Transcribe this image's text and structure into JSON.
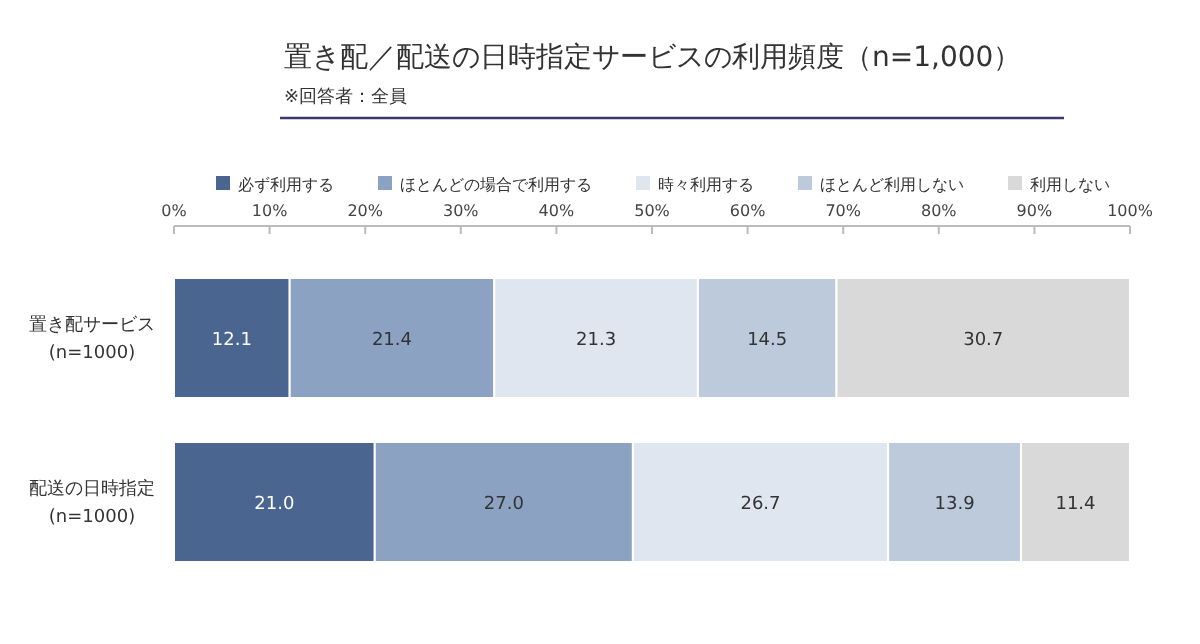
{
  "chart_data": {
    "type": "bar",
    "orientation": "horizontal",
    "stacked": true,
    "title": "置き配／配送の日時指定サービスの利用頻度（n=1,000）",
    "subtitle": "※回答者：全員",
    "categories": [
      "置き配サービス\n(n=1000)",
      "配送の日時指定\n(n=1000)"
    ],
    "series": [
      {
        "name": "必ず利用する",
        "color": "#4a6690",
        "values": [
          12.1,
          21.0
        ],
        "value_labels": [
          "12.1",
          "21.0"
        ]
      },
      {
        "name": "ほとんどの場合で利用する",
        "color": "#8ba2c2",
        "values": [
          21.4,
          27.0
        ],
        "value_labels": [
          "21.4",
          "27.0"
        ]
      },
      {
        "name": "時々利用する",
        "color": "#dfe6ef",
        "values": [
          21.3,
          26.7
        ],
        "value_labels": [
          "21.3",
          "26.7"
        ]
      },
      {
        "name": "ほとんど利用しない",
        "color": "#bccadb",
        "values": [
          14.5,
          13.9
        ],
        "value_labels": [
          "14.5",
          "13.9"
        ]
      },
      {
        "name": "利用しない",
        "color": "#d9d9d9",
        "values": [
          30.7,
          11.4
        ],
        "value_labels": [
          "30.7",
          "11.4"
        ]
      }
    ],
    "xlim": [
      0,
      100
    ],
    "xticks": [
      {
        "value": 0,
        "label": "0%"
      },
      {
        "value": 10,
        "label": "10%"
      },
      {
        "value": 20,
        "label": "20%"
      },
      {
        "value": 30,
        "label": "30%"
      },
      {
        "value": 40,
        "label": "40%"
      },
      {
        "value": 50,
        "label": "50%"
      },
      {
        "value": 60,
        "label": "60%"
      },
      {
        "value": 70,
        "label": "70%"
      },
      {
        "value": 80,
        "label": "80%"
      },
      {
        "value": 90,
        "label": "90%"
      },
      {
        "value": 100,
        "label": "100%"
      }
    ],
    "legend": "top",
    "grid": false
  }
}
